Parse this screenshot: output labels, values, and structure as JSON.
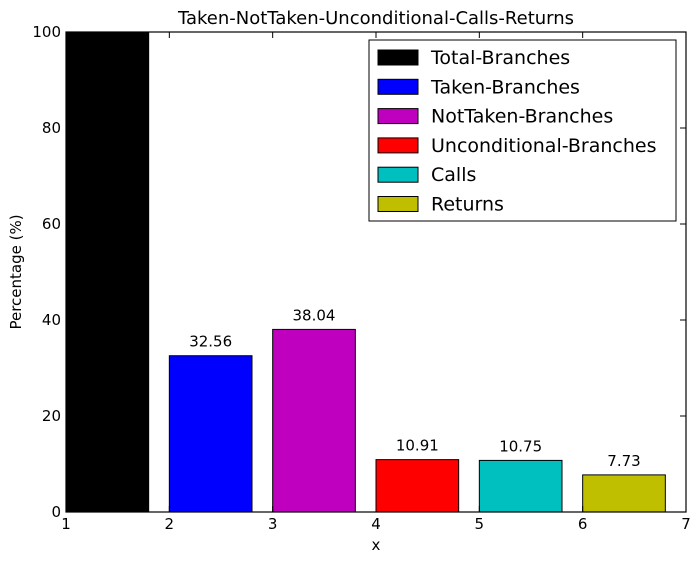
{
  "chart_data": {
    "type": "bar",
    "title": "Taken-NotTaken-Unconditional-Calls-Returns",
    "xlabel": "x",
    "ylabel": "Percentage (%)",
    "xlim": [
      1,
      7
    ],
    "ylim": [
      0,
      100
    ],
    "xticks": [
      "1",
      "2",
      "3",
      "4",
      "5",
      "6",
      "7"
    ],
    "yticks": [
      "0",
      "20",
      "40",
      "60",
      "80",
      "100"
    ],
    "grid": false,
    "legend_position": "top-right",
    "series": [
      {
        "name": "Total-Branches",
        "x": 1.0,
        "value": 100,
        "label": "",
        "color": "#000000"
      },
      {
        "name": "Taken-Branches",
        "x": 2.0,
        "value": 32.56,
        "label": "32.56",
        "color": "#0000ff"
      },
      {
        "name": "NotTaken-Branches",
        "x": 3.0,
        "value": 38.04,
        "label": "38.04",
        "color": "#bf00bf"
      },
      {
        "name": "Unconditional-Branches",
        "x": 4.0,
        "value": 10.91,
        "label": "10.91",
        "color": "#ff0000"
      },
      {
        "name": "Calls",
        "x": 5.0,
        "value": 10.75,
        "label": "10.75",
        "color": "#00bfbf"
      },
      {
        "name": "Returns",
        "x": 6.0,
        "value": 7.73,
        "label": "7.73",
        "color": "#bfbf00"
      }
    ],
    "bar_width": 0.8
  }
}
